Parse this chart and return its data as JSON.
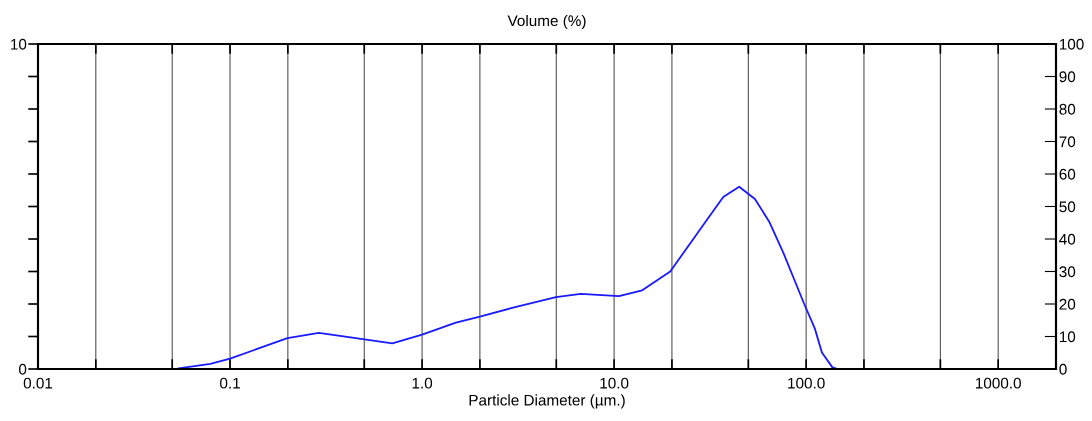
{
  "chart_data": {
    "type": "line",
    "title": "Volume (%)",
    "xlabel": "Particle Diameter (µm.)",
    "log": "x",
    "grid": "x",
    "line_style": "solid",
    "marker": "none",
    "xlim": [
      0.01,
      2000
    ],
    "xticks": [
      {
        "value": 0.01,
        "label": "0.01"
      },
      {
        "value": 0.02,
        "label": null
      },
      {
        "value": 0.05,
        "label": null
      },
      {
        "value": 0.1,
        "label": "0.1"
      },
      {
        "value": 0.2,
        "label": null
      },
      {
        "value": 0.5,
        "label": null
      },
      {
        "value": 1,
        "label": "1.0"
      },
      {
        "value": 2,
        "label": null
      },
      {
        "value": 5,
        "label": null
      },
      {
        "value": 10,
        "label": "10.0"
      },
      {
        "value": 20,
        "label": null
      },
      {
        "value": 50,
        "label": null
      },
      {
        "value": 100,
        "label": "100.0"
      },
      {
        "value": 200,
        "label": null
      },
      {
        "value": 500,
        "label": null
      },
      {
        "value": 1000,
        "label": "1000.0"
      }
    ],
    "ylim": [
      0,
      10
    ],
    "yticks": [
      0,
      {
        "value": 1,
        "label": null
      },
      {
        "value": 2,
        "label": null
      },
      {
        "value": 3,
        "label": null
      },
      {
        "value": 4,
        "label": null
      },
      {
        "value": 5,
        "label": null
      },
      {
        "value": 6,
        "label": null
      },
      {
        "value": 7,
        "label": null
      },
      {
        "value": 8,
        "label": null
      },
      {
        "value": 9,
        "label": null
      },
      10
    ],
    "y2lim": [
      0,
      100
    ],
    "y2ticks": [
      0,
      10,
      20,
      30,
      40,
      50,
      60,
      70,
      80,
      90,
      100
    ],
    "series": [
      {
        "color": "#1a1aff",
        "x": [
          0.054,
          0.079,
          0.1,
          0.142,
          0.199,
          0.29,
          0.424,
          0.7,
          1.0,
          1.5,
          2.0,
          2.94,
          4.98,
          6.7,
          10.6,
          14.0,
          19.6,
          30.0,
          37.0,
          44.8,
          54.1,
          64.1,
          75.9,
          97.7,
          110.9,
          120.8,
          137,
          146,
          507
        ],
        "values": [
          0.02,
          0.16,
          0.32,
          0.64,
          0.95,
          1.11,
          0.97,
          0.79,
          1.06,
          1.43,
          1.61,
          1.88,
          2.21,
          2.31,
          2.24,
          2.42,
          3.0,
          4.54,
          5.29,
          5.61,
          5.23,
          4.54,
          3.59,
          2.0,
          1.25,
          0.51,
          0.05,
          0,
          0
        ]
      }
    ]
  }
}
